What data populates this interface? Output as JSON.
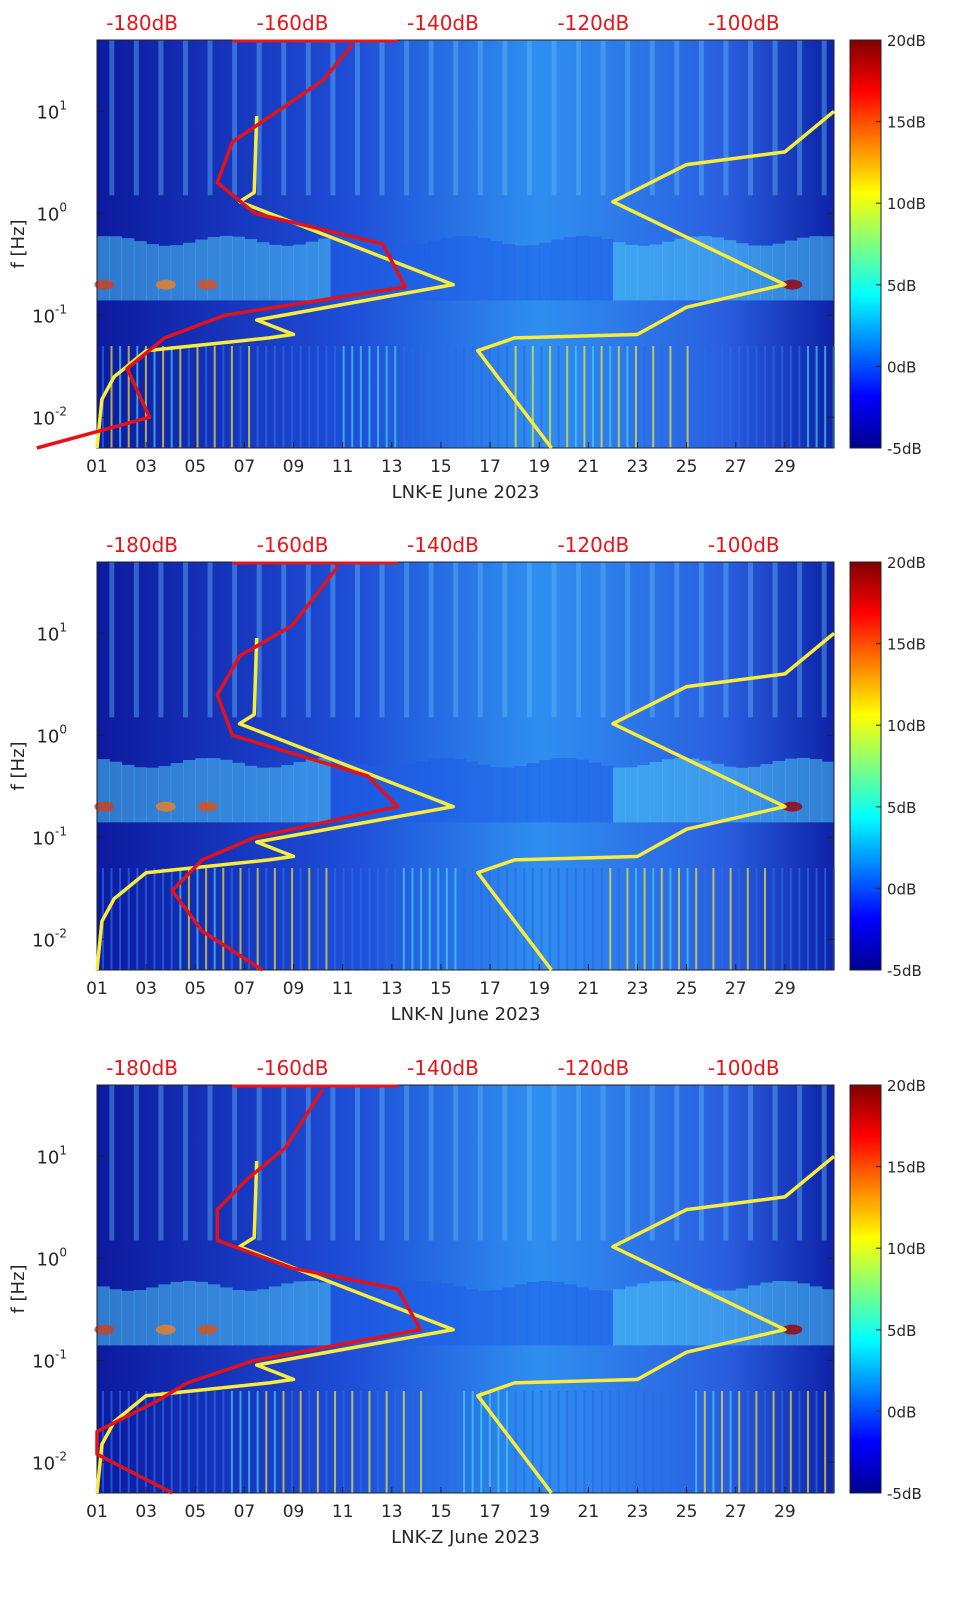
{
  "chart_data": [
    {
      "type": "heatmap",
      "station": "LNK-E",
      "xlabel": "LNK-E June 2023",
      "ylabel": "f [Hz]",
      "x_ticks": [
        "01",
        "03",
        "05",
        "07",
        "09",
        "11",
        "13",
        "15",
        "17",
        "19",
        "21",
        "23",
        "25",
        "27",
        "29"
      ],
      "y_ticks": [
        "10^{-2}",
        "10^{-1}",
        "10^{0}",
        "10^{1}"
      ],
      "xlim_days": [
        1,
        31
      ],
      "ylim_hz": [
        0.005,
        50
      ],
      "colorbar_ticks": [
        "20dB",
        "15dB",
        "10dB",
        "5dB",
        "0dB",
        "-5dB"
      ],
      "clim_db": [
        -5,
        20
      ],
      "top_axis_ticks": [
        "-180dB",
        "-160dB",
        "-140dB",
        "-120dB",
        "-100dB"
      ],
      "top_axis_range_db": [
        -186,
        -88
      ],
      "red_line_db_series": {
        "name": "PSD",
        "points": [
          [
            -194,
            0.005
          ],
          [
            -179,
            0.01
          ],
          [
            -182,
            0.03
          ],
          [
            -177,
            0.06
          ],
          [
            -169,
            0.1
          ],
          [
            -145,
            0.19
          ],
          [
            -148,
            0.5
          ],
          [
            -165,
            1
          ],
          [
            -170,
            2
          ],
          [
            -168,
            5
          ],
          [
            -162,
            10
          ],
          [
            -156,
            20
          ],
          [
            -152,
            45
          ]
        ]
      },
      "yellow_lines": [
        {
          "name": "model-left",
          "points": [
            [
              1,
              0.005
            ],
            [
              1.2,
              0.015
            ],
            [
              1.7,
              0.025
            ],
            [
              3,
              0.045
            ],
            [
              8,
              0.06
            ],
            [
              9,
              0.065
            ],
            [
              7.5,
              0.09
            ],
            [
              15.5,
              0.2
            ],
            [
              6.8,
              1.3
            ],
            [
              7.4,
              1.6
            ],
            [
              7.5,
              9
            ]
          ]
        },
        {
          "name": "model-right",
          "points": [
            [
              19.5,
              0.005
            ],
            [
              16.5,
              0.045
            ],
            [
              18,
              0.06
            ],
            [
              23,
              0.065
            ],
            [
              25,
              0.12
            ],
            [
              29,
              0.2
            ],
            [
              22,
              1.3
            ],
            [
              25,
              3
            ],
            [
              29,
              4
            ],
            [
              31,
              10
            ]
          ]
        }
      ]
    },
    {
      "type": "heatmap",
      "station": "LNK-N",
      "xlabel": "LNK-N June 2023",
      "ylabel": "f [Hz]",
      "x_ticks": [
        "01",
        "03",
        "05",
        "07",
        "09",
        "11",
        "13",
        "15",
        "17",
        "19",
        "21",
        "23",
        "25",
        "27",
        "29"
      ],
      "y_ticks": [
        "10^{-2}",
        "10^{-1}",
        "10^{0}",
        "10^{1}"
      ],
      "xlim_days": [
        1,
        31
      ],
      "ylim_hz": [
        0.005,
        50
      ],
      "colorbar_ticks": [
        "20dB",
        "15dB",
        "10dB",
        "5dB",
        "0dB",
        "-5dB"
      ],
      "clim_db": [
        -5,
        20
      ],
      "top_axis_ticks": [
        "-180dB",
        "-160dB",
        "-140dB",
        "-120dB",
        "-100dB"
      ],
      "top_axis_range_db": [
        -186,
        -88
      ],
      "red_line_db_series": {
        "name": "PSD",
        "points": [
          [
            -164,
            0.005
          ],
          [
            -172,
            0.012
          ],
          [
            -176,
            0.03
          ],
          [
            -172,
            0.06
          ],
          [
            -165,
            0.1
          ],
          [
            -146,
            0.2
          ],
          [
            -150,
            0.4
          ],
          [
            -168,
            1
          ],
          [
            -170,
            2.5
          ],
          [
            -167,
            6
          ],
          [
            -160,
            12
          ],
          [
            -154,
            45
          ]
        ]
      },
      "yellow_lines": [
        {
          "name": "model-left",
          "points": [
            [
              1,
              0.005
            ],
            [
              1.2,
              0.015
            ],
            [
              1.7,
              0.025
            ],
            [
              3,
              0.045
            ],
            [
              8,
              0.06
            ],
            [
              9,
              0.065
            ],
            [
              7.5,
              0.09
            ],
            [
              15.5,
              0.2
            ],
            [
              6.8,
              1.3
            ],
            [
              7.4,
              1.6
            ],
            [
              7.5,
              9
            ]
          ]
        },
        {
          "name": "model-right",
          "points": [
            [
              19.5,
              0.005
            ],
            [
              16.5,
              0.045
            ],
            [
              18,
              0.06
            ],
            [
              23,
              0.065
            ],
            [
              25,
              0.12
            ],
            [
              29,
              0.2
            ],
            [
              22,
              1.3
            ],
            [
              25,
              3
            ],
            [
              29,
              4
            ],
            [
              31,
              10
            ]
          ]
        }
      ]
    },
    {
      "type": "heatmap",
      "station": "LNK-Z",
      "xlabel": "LNK-Z June 2023",
      "ylabel": "f [Hz]",
      "x_ticks": [
        "01",
        "03",
        "05",
        "07",
        "09",
        "11",
        "13",
        "15",
        "17",
        "19",
        "21",
        "23",
        "25",
        "27",
        "29"
      ],
      "y_ticks": [
        "10^{-2}",
        "10^{-1}",
        "10^{0}",
        "10^{1}"
      ],
      "xlim_days": [
        1,
        31
      ],
      "ylim_hz": [
        0.005,
        50
      ],
      "colorbar_ticks": [
        "20dB",
        "15dB",
        "10dB",
        "5dB",
        "0dB",
        "-5dB"
      ],
      "clim_db": [
        -5,
        20
      ],
      "top_axis_ticks": [
        "-180dB",
        "-160dB",
        "-140dB",
        "-120dB",
        "-100dB"
      ],
      "top_axis_range_db": [
        -186,
        -88
      ],
      "red_line_db_series": {
        "name": "PSD",
        "points": [
          [
            -176,
            0.005
          ],
          [
            -186,
            0.012
          ],
          [
            -186,
            0.02
          ],
          [
            -178,
            0.04
          ],
          [
            -174,
            0.06
          ],
          [
            -165,
            0.1
          ],
          [
            -143,
            0.2
          ],
          [
            -146,
            0.5
          ],
          [
            -160,
            0.8
          ],
          [
            -170,
            1.5
          ],
          [
            -170,
            3
          ],
          [
            -166,
            6
          ],
          [
            -161,
            12
          ],
          [
            -156,
            45
          ]
        ]
      },
      "yellow_lines": [
        {
          "name": "model-left",
          "points": [
            [
              1,
              0.005
            ],
            [
              1.2,
              0.015
            ],
            [
              1.7,
              0.025
            ],
            [
              3,
              0.045
            ],
            [
              8,
              0.06
            ],
            [
              9,
              0.065
            ],
            [
              7.5,
              0.09
            ],
            [
              15.5,
              0.2
            ],
            [
              6.8,
              1.3
            ],
            [
              7.4,
              1.6
            ],
            [
              7.5,
              9
            ]
          ]
        },
        {
          "name": "model-right",
          "points": [
            [
              19.5,
              0.005
            ],
            [
              16.5,
              0.045
            ],
            [
              18,
              0.06
            ],
            [
              23,
              0.065
            ],
            [
              25,
              0.12
            ],
            [
              29,
              0.2
            ],
            [
              22,
              1.3
            ],
            [
              25,
              3
            ],
            [
              29,
              4
            ],
            [
              31,
              10
            ]
          ]
        }
      ]
    }
  ]
}
